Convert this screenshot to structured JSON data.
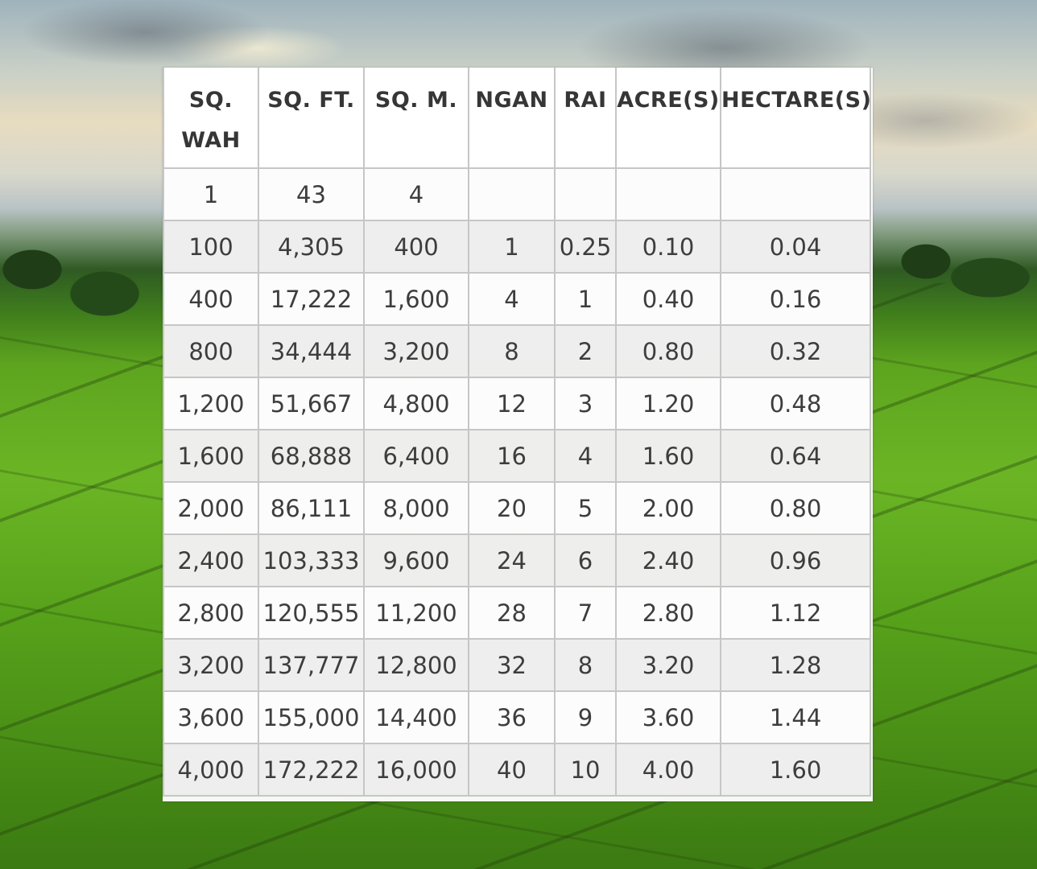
{
  "table": {
    "headers": [
      "SQ. WAH",
      "SQ. FT.",
      "SQ. M.",
      "NGAN",
      "RAI",
      "ACRE(S)",
      "HECTARE(S)"
    ],
    "rows": [
      [
        "1",
        "43",
        "4",
        "",
        "",
        "",
        ""
      ],
      [
        "100",
        "4,305",
        "400",
        "1",
        "0.25",
        "0.10",
        "0.04"
      ],
      [
        "400",
        "17,222",
        "1,600",
        "4",
        "1",
        "0.40",
        "0.16"
      ],
      [
        "800",
        "34,444",
        "3,200",
        "8",
        "2",
        "0.80",
        "0.32"
      ],
      [
        "1,200",
        "51,667",
        "4,800",
        "12",
        "3",
        "1.20",
        "0.48"
      ],
      [
        "1,600",
        "68,888",
        "6,400",
        "16",
        "4",
        "1.60",
        "0.64"
      ],
      [
        "2,000",
        "86,111",
        "8,000",
        "20",
        "5",
        "2.00",
        "0.80"
      ],
      [
        "2,400",
        "103,333",
        "9,600",
        "24",
        "6",
        "2.40",
        "0.96"
      ],
      [
        "2,800",
        "120,555",
        "11,200",
        "28",
        "7",
        "2.80",
        "1.12"
      ],
      [
        "3,200",
        "137,777",
        "12,800",
        "32",
        "8",
        "3.20",
        "1.28"
      ],
      [
        "3,600",
        "155,000",
        "14,400",
        "36",
        "9",
        "3.60",
        "1.44"
      ],
      [
        "4,000",
        "172,222",
        "16,000",
        "40",
        "10",
        "4.00",
        "1.60"
      ]
    ]
  },
  "colors": {
    "text": "#3d3d3d",
    "border": "#c6c6c6",
    "row_alt": "#ececec",
    "field_green": "#6bb525"
  }
}
